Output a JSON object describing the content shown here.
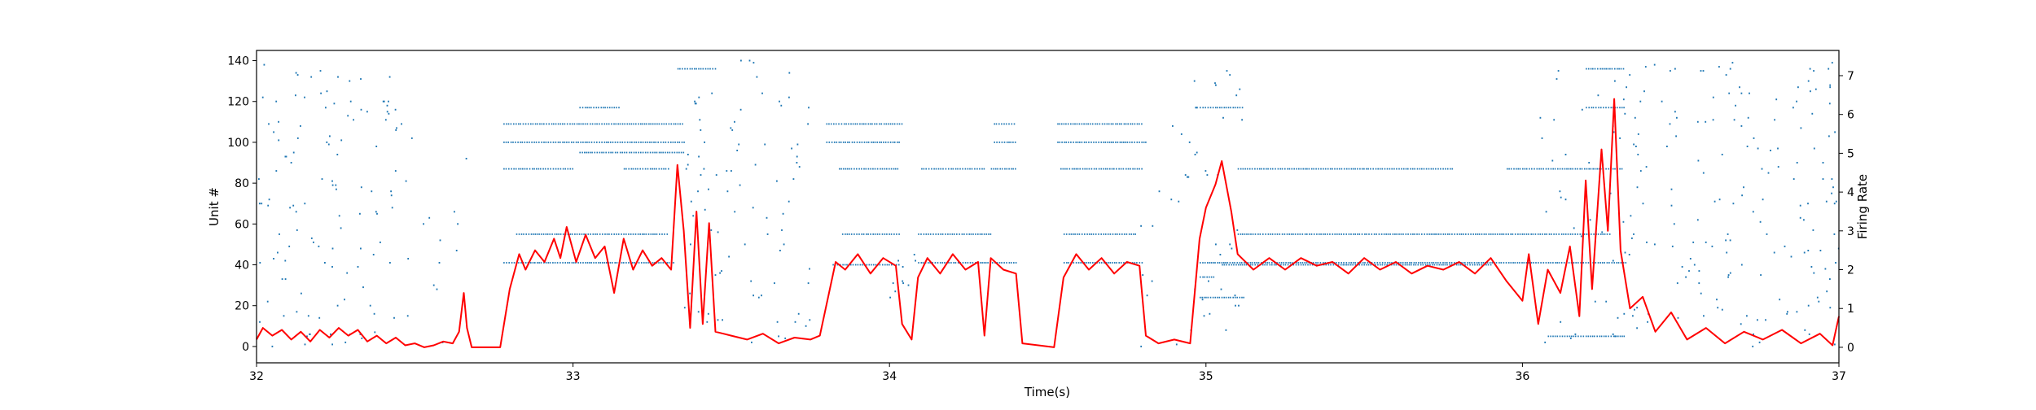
{
  "chart_data": {
    "type": "scatter",
    "title": "",
    "xlabel": "Time(s)",
    "ylabel_left": "Unit #",
    "ylabel_right": "Firing Rate",
    "xlim": [
      32,
      37
    ],
    "ylim_left": [
      -8,
      145
    ],
    "ylim_right": [
      -0.4,
      7.65
    ],
    "x_ticks": [
      "32",
      "33",
      "34",
      "35",
      "36",
      "37"
    ],
    "y_ticks_left": [
      "0",
      "20",
      "40",
      "60",
      "80",
      "100",
      "120",
      "140"
    ],
    "y_ticks_right": [
      "0",
      "1",
      "2",
      "3",
      "4",
      "5",
      "6",
      "7"
    ],
    "grid": false,
    "legend": "none",
    "colors": {
      "spikes": "#1f77b4",
      "firing_rate": "#ff0000",
      "axes": "#000000"
    },
    "series": [
      {
        "type": "raster",
        "color": "#1f77b4",
        "axis": "left",
        "dense_segments": [
          {
            "unit": 109,
            "x": [
              32.78,
              33.35
            ]
          },
          {
            "unit": 100,
            "x": [
              32.78,
              33.35
            ]
          },
          {
            "unit": 95,
            "x": [
              33.02,
              33.35
            ]
          },
          {
            "unit": 87,
            "x": [
              32.78,
              33.0
            ]
          },
          {
            "unit": 87,
            "x": [
              33.16,
              33.3
            ]
          },
          {
            "unit": 55,
            "x": [
              32.82,
              33.3
            ]
          },
          {
            "unit": 41,
            "x": [
              32.78,
              33.32
            ]
          },
          {
            "unit": 117,
            "x": [
              33.02,
              33.15
            ]
          },
          {
            "unit": 136,
            "x": [
              33.33,
              33.45
            ]
          },
          {
            "unit": 109,
            "x": [
              33.8,
              34.04
            ]
          },
          {
            "unit": 100,
            "x": [
              33.8,
              34.03
            ]
          },
          {
            "unit": 87,
            "x": [
              33.84,
              34.03
            ]
          },
          {
            "unit": 55,
            "x": [
              33.85,
              34.03
            ]
          },
          {
            "unit": 40,
            "x": [
              33.82,
              34.03
            ]
          },
          {
            "unit": 87,
            "x": [
              34.1,
              34.3
            ]
          },
          {
            "unit": 55,
            "x": [
              34.09,
              34.32
            ]
          },
          {
            "unit": 41,
            "x": [
              34.09,
              34.4
            ]
          },
          {
            "unit": 109,
            "x": [
              34.33,
              34.4
            ]
          },
          {
            "unit": 100,
            "x": [
              34.33,
              34.4
            ]
          },
          {
            "unit": 87,
            "x": [
              34.32,
              34.4
            ]
          },
          {
            "unit": 109,
            "x": [
              34.53,
              34.8
            ]
          },
          {
            "unit": 100,
            "x": [
              34.53,
              34.81
            ]
          },
          {
            "unit": 87,
            "x": [
              34.54,
              34.8
            ]
          },
          {
            "unit": 55,
            "x": [
              34.55,
              34.78
            ]
          },
          {
            "unit": 41,
            "x": [
              34.55,
              34.8
            ]
          },
          {
            "unit": 117,
            "x": [
              34.98,
              35.12
            ]
          },
          {
            "unit": 87,
            "x": [
              35.1,
              35.78
            ]
          },
          {
            "unit": 87,
            "x": [
              35.95,
              36.32
            ]
          },
          {
            "unit": 55,
            "x": [
              35.1,
              36.28
            ]
          },
          {
            "unit": 41,
            "x": [
              34.98,
              36.33
            ]
          },
          {
            "unit": 40,
            "x": [
              35.05,
              35.9
            ]
          },
          {
            "unit": 24,
            "x": [
              34.98,
              35.12
            ]
          },
          {
            "unit": 34,
            "x": [
              34.98,
              35.03
            ]
          },
          {
            "unit": 136,
            "x": [
              36.2,
              36.32
            ]
          },
          {
            "unit": 117,
            "x": [
              36.2,
              36.32
            ]
          },
          {
            "unit": 5,
            "x": [
              36.08,
              36.32
            ]
          }
        ],
        "scatter_clusters": [
          {
            "x": [
              32.0,
              32.45
            ],
            "y": [
              0,
              140
            ],
            "n": 120
          },
          {
            "x": [
              32.45,
              32.7
            ],
            "y": [
              0,
              125
            ],
            "n": 16
          },
          {
            "x": [
              33.35,
              33.75
            ],
            "y": [
              0,
              140
            ],
            "n": 90
          },
          {
            "x": [
              34.0,
              34.1
            ],
            "y": [
              5,
              45
            ],
            "n": 10
          },
          {
            "x": [
              34.78,
              35.0
            ],
            "y": [
              0,
              110
            ],
            "n": 18
          },
          {
            "x": [
              34.95,
              35.12
            ],
            "y": [
              0,
              135
            ],
            "n": 30
          },
          {
            "x": [
              36.05,
              36.35
            ],
            "y": [
              0,
              140
            ],
            "n": 40
          },
          {
            "x": [
              36.3,
              37.0
            ],
            "y": [
              0,
              140
            ],
            "n": 170
          }
        ]
      },
      {
        "type": "line",
        "color": "#ff0000",
        "axis": "right",
        "points": [
          [
            32.0,
            0.2
          ],
          [
            32.02,
            0.5
          ],
          [
            32.05,
            0.3
          ],
          [
            32.08,
            0.45
          ],
          [
            32.11,
            0.2
          ],
          [
            32.14,
            0.4
          ],
          [
            32.17,
            0.15
          ],
          [
            32.2,
            0.45
          ],
          [
            32.23,
            0.25
          ],
          [
            32.26,
            0.5
          ],
          [
            32.29,
            0.3
          ],
          [
            32.32,
            0.45
          ],
          [
            32.35,
            0.15
          ],
          [
            32.38,
            0.3
          ],
          [
            32.41,
            0.1
          ],
          [
            32.44,
            0.25
          ],
          [
            32.47,
            0.05
          ],
          [
            32.5,
            0.1
          ],
          [
            32.53,
            0.0
          ],
          [
            32.56,
            0.05
          ],
          [
            32.59,
            0.15
          ],
          [
            32.62,
            0.1
          ],
          [
            32.64,
            0.4
          ],
          [
            32.655,
            1.4
          ],
          [
            32.665,
            0.5
          ],
          [
            32.68,
            0.0
          ],
          [
            32.77,
            0.0
          ],
          [
            32.8,
            1.5
          ],
          [
            32.83,
            2.4
          ],
          [
            32.85,
            2.0
          ],
          [
            32.88,
            2.5
          ],
          [
            32.91,
            2.2
          ],
          [
            32.94,
            2.8
          ],
          [
            32.96,
            2.3
          ],
          [
            32.98,
            3.1
          ],
          [
            33.01,
            2.2
          ],
          [
            33.04,
            2.9
          ],
          [
            33.07,
            2.3
          ],
          [
            33.1,
            2.6
          ],
          [
            33.13,
            1.4
          ],
          [
            33.16,
            2.8
          ],
          [
            33.19,
            2.0
          ],
          [
            33.22,
            2.5
          ],
          [
            33.25,
            2.1
          ],
          [
            33.28,
            2.3
          ],
          [
            33.31,
            2.0
          ],
          [
            33.33,
            4.7
          ],
          [
            33.35,
            3.0
          ],
          [
            33.37,
            0.5
          ],
          [
            33.39,
            3.5
          ],
          [
            33.41,
            0.6
          ],
          [
            33.43,
            3.2
          ],
          [
            33.45,
            0.4
          ],
          [
            33.5,
            0.3
          ],
          [
            33.55,
            0.2
          ],
          [
            33.6,
            0.35
          ],
          [
            33.65,
            0.1
          ],
          [
            33.7,
            0.25
          ],
          [
            33.75,
            0.2
          ],
          [
            33.78,
            0.3
          ],
          [
            33.83,
            2.2
          ],
          [
            33.86,
            2.0
          ],
          [
            33.9,
            2.4
          ],
          [
            33.94,
            1.9
          ],
          [
            33.98,
            2.3
          ],
          [
            34.02,
            2.1
          ],
          [
            34.04,
            0.6
          ],
          [
            34.07,
            0.2
          ],
          [
            34.09,
            1.8
          ],
          [
            34.12,
            2.3
          ],
          [
            34.16,
            1.9
          ],
          [
            34.2,
            2.4
          ],
          [
            34.24,
            2.0
          ],
          [
            34.28,
            2.2
          ],
          [
            34.3,
            0.3
          ],
          [
            34.32,
            2.3
          ],
          [
            34.36,
            2.0
          ],
          [
            34.4,
            1.9
          ],
          [
            34.42,
            0.1
          ],
          [
            34.52,
            0.0
          ],
          [
            34.55,
            1.8
          ],
          [
            34.59,
            2.4
          ],
          [
            34.63,
            2.0
          ],
          [
            34.67,
            2.3
          ],
          [
            34.71,
            1.9
          ],
          [
            34.75,
            2.2
          ],
          [
            34.79,
            2.1
          ],
          [
            34.81,
            0.3
          ],
          [
            34.85,
            0.1
          ],
          [
            34.9,
            0.2
          ],
          [
            34.95,
            0.1
          ],
          [
            34.98,
            2.8
          ],
          [
            35.0,
            3.6
          ],
          [
            35.03,
            4.2
          ],
          [
            35.05,
            4.8
          ],
          [
            35.08,
            3.5
          ],
          [
            35.1,
            2.4
          ],
          [
            35.15,
            2.0
          ],
          [
            35.2,
            2.3
          ],
          [
            35.25,
            2.0
          ],
          [
            35.3,
            2.3
          ],
          [
            35.35,
            2.1
          ],
          [
            35.4,
            2.2
          ],
          [
            35.45,
            1.9
          ],
          [
            35.5,
            2.3
          ],
          [
            35.55,
            2.0
          ],
          [
            35.6,
            2.2
          ],
          [
            35.65,
            1.9
          ],
          [
            35.7,
            2.1
          ],
          [
            35.75,
            2.0
          ],
          [
            35.8,
            2.2
          ],
          [
            35.85,
            1.9
          ],
          [
            35.9,
            2.3
          ],
          [
            35.95,
            1.7
          ],
          [
            36.0,
            1.2
          ],
          [
            36.02,
            2.4
          ],
          [
            36.05,
            0.6
          ],
          [
            36.08,
            2.0
          ],
          [
            36.12,
            1.4
          ],
          [
            36.15,
            2.6
          ],
          [
            36.18,
            0.8
          ],
          [
            36.2,
            4.3
          ],
          [
            36.22,
            1.5
          ],
          [
            36.25,
            5.1
          ],
          [
            36.27,
            3.0
          ],
          [
            36.29,
            6.4
          ],
          [
            36.31,
            2.5
          ],
          [
            36.34,
            1.0
          ],
          [
            36.38,
            1.3
          ],
          [
            36.42,
            0.4
          ],
          [
            36.47,
            0.9
          ],
          [
            36.52,
            0.2
          ],
          [
            36.58,
            0.5
          ],
          [
            36.64,
            0.1
          ],
          [
            36.7,
            0.4
          ],
          [
            36.76,
            0.2
          ],
          [
            36.82,
            0.45
          ],
          [
            36.88,
            0.1
          ],
          [
            36.94,
            0.35
          ],
          [
            36.98,
            0.05
          ],
          [
            37.0,
            0.8
          ]
        ]
      }
    ]
  }
}
